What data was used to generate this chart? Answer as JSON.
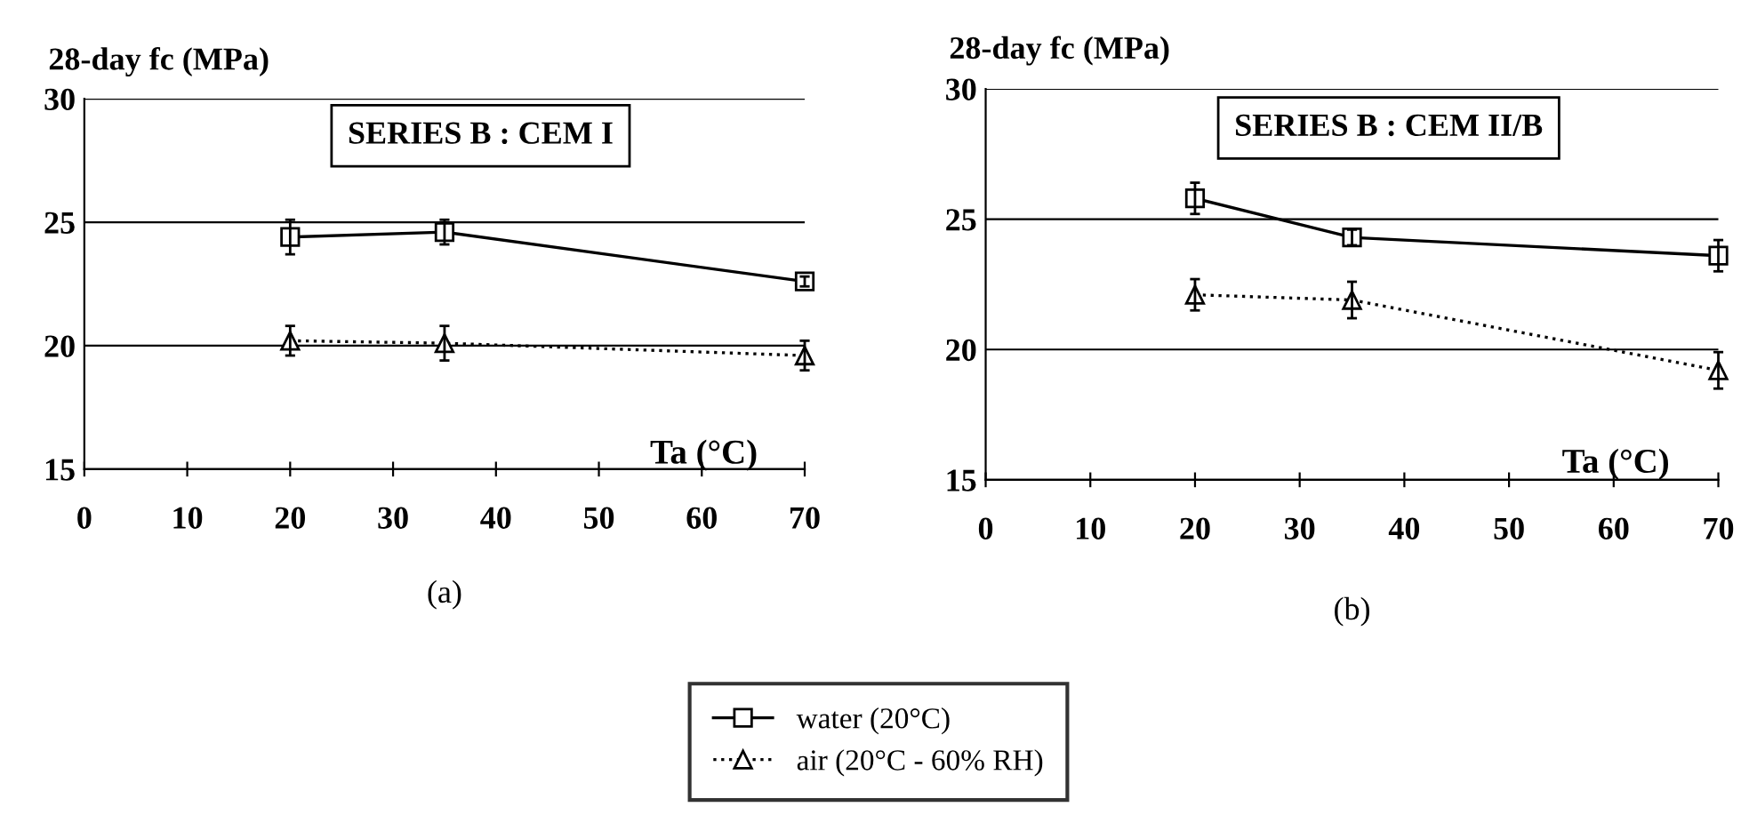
{
  "chart_data": [
    {
      "type": "line",
      "ylabel": "28-day fc (MPa)",
      "xlabel": "Ta (°C)",
      "annotations": [
        "SERIES B : CEM I",
        "(a)"
      ],
      "x": [
        20,
        35,
        70
      ],
      "xlim": [
        0,
        70
      ],
      "xticks": [
        0,
        10,
        20,
        30,
        40,
        50,
        60,
        70
      ],
      "ylim": [
        15,
        30
      ],
      "yticks": [
        15,
        20,
        25,
        30
      ],
      "grid": "y",
      "legend": "bottom",
      "series": [
        {
          "name": "water (20°C)",
          "color": "#000000",
          "marker": "square",
          "line_style": "solid",
          "values": [
            24.4,
            24.6,
            22.6
          ],
          "errors": [
            0.7,
            0.5,
            0.2
          ]
        },
        {
          "name": "air (20°C - 60% RH)",
          "color": "#000000",
          "marker": "triangle",
          "line_style": "dotted",
          "values": [
            20.2,
            20.1,
            19.6
          ],
          "errors": [
            0.6,
            0.7,
            0.6
          ]
        }
      ]
    },
    {
      "type": "line",
      "ylabel": "28-day fc (MPa)",
      "xlabel": "Ta (°C)",
      "annotations": [
        "SERIES B : CEM II/B",
        "(b)"
      ],
      "x": [
        20,
        35,
        70
      ],
      "xlim": [
        0,
        70
      ],
      "xticks": [
        0,
        10,
        20,
        30,
        40,
        50,
        60,
        70
      ],
      "ylim": [
        15,
        30
      ],
      "yticks": [
        15,
        20,
        25,
        30
      ],
      "grid": "y",
      "series": [
        {
          "color": "#000000",
          "marker": "square",
          "line_style": "solid",
          "values": [
            25.8,
            24.3,
            23.6
          ],
          "errors": [
            0.6,
            0.3,
            0.6
          ]
        },
        {
          "color": "#000000",
          "marker": "triangle",
          "line_style": "dotted",
          "values": [
            22.1,
            21.9,
            19.2
          ],
          "errors": [
            0.6,
            0.7,
            0.7
          ]
        }
      ]
    }
  ]
}
